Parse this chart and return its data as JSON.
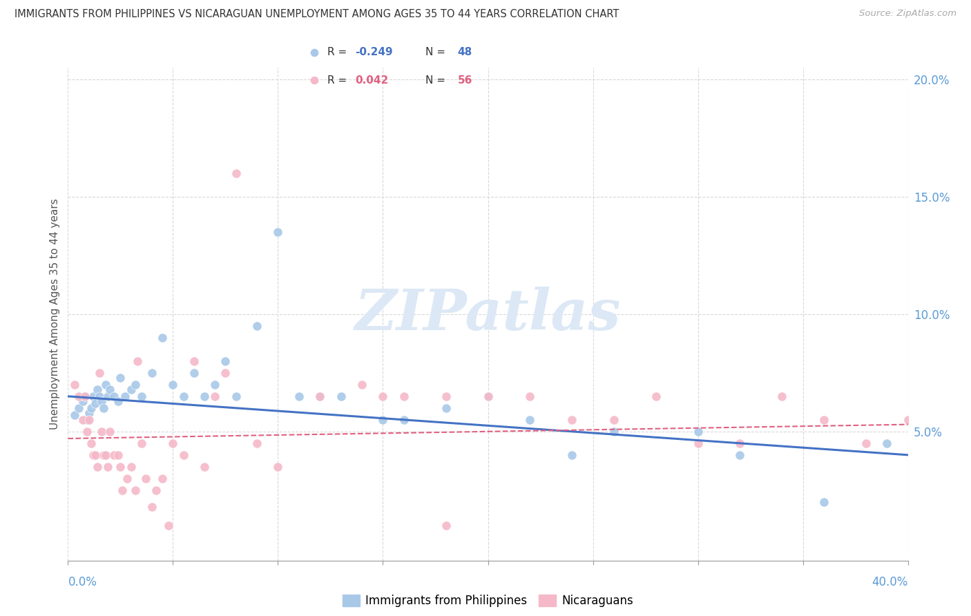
{
  "title": "IMMIGRANTS FROM PHILIPPINES VS NICARAGUAN UNEMPLOYMENT AMONG AGES 35 TO 44 YEARS CORRELATION CHART",
  "source": "Source: ZipAtlas.com",
  "ylabel": "Unemployment Among Ages 35 to 44 years",
  "right_ytick_vals": [
    0.05,
    0.1,
    0.15,
    0.2
  ],
  "blue_color": "#a8c8e8",
  "pink_color": "#f5b8c8",
  "blue_line_color": "#4472c4",
  "pink_line_color": "#e06080",
  "watermark_text": "ZIPatlas",
  "watermark_color": "#dce8f5",
  "background_color": "#ffffff",
  "grid_color": "#d8d8d8",
  "xlim": [
    0.0,
    0.4
  ],
  "ylim": [
    -0.005,
    0.205
  ],
  "blue_x": [
    0.003,
    0.005,
    0.007,
    0.008,
    0.009,
    0.01,
    0.011,
    0.012,
    0.013,
    0.014,
    0.015,
    0.016,
    0.017,
    0.018,
    0.019,
    0.02,
    0.022,
    0.024,
    0.025,
    0.027,
    0.03,
    0.032,
    0.035,
    0.04,
    0.045,
    0.05,
    0.055,
    0.06,
    0.065,
    0.07,
    0.075,
    0.08,
    0.09,
    0.1,
    0.11,
    0.12,
    0.13,
    0.15,
    0.16,
    0.18,
    0.2,
    0.22,
    0.24,
    0.26,
    0.3,
    0.32,
    0.36,
    0.39
  ],
  "blue_y": [
    0.057,
    0.06,
    0.063,
    0.065,
    0.055,
    0.058,
    0.06,
    0.065,
    0.062,
    0.068,
    0.065,
    0.063,
    0.06,
    0.07,
    0.065,
    0.068,
    0.065,
    0.063,
    0.073,
    0.065,
    0.068,
    0.07,
    0.065,
    0.075,
    0.09,
    0.07,
    0.065,
    0.075,
    0.065,
    0.07,
    0.08,
    0.065,
    0.095,
    0.135,
    0.065,
    0.065,
    0.065,
    0.055,
    0.055,
    0.06,
    0.065,
    0.055,
    0.04,
    0.05,
    0.05,
    0.04,
    0.02,
    0.045
  ],
  "pink_x": [
    0.003,
    0.005,
    0.007,
    0.008,
    0.009,
    0.01,
    0.011,
    0.012,
    0.013,
    0.014,
    0.015,
    0.016,
    0.017,
    0.018,
    0.019,
    0.02,
    0.022,
    0.024,
    0.025,
    0.026,
    0.028,
    0.03,
    0.032,
    0.033,
    0.035,
    0.037,
    0.04,
    0.042,
    0.045,
    0.048,
    0.05,
    0.055,
    0.06,
    0.065,
    0.07,
    0.075,
    0.08,
    0.09,
    0.1,
    0.12,
    0.14,
    0.15,
    0.16,
    0.18,
    0.2,
    0.22,
    0.24,
    0.26,
    0.28,
    0.3,
    0.32,
    0.34,
    0.36,
    0.38,
    0.4,
    0.18
  ],
  "pink_y": [
    0.07,
    0.065,
    0.055,
    0.065,
    0.05,
    0.055,
    0.045,
    0.04,
    0.04,
    0.035,
    0.075,
    0.05,
    0.04,
    0.04,
    0.035,
    0.05,
    0.04,
    0.04,
    0.035,
    0.025,
    0.03,
    0.035,
    0.025,
    0.08,
    0.045,
    0.03,
    0.018,
    0.025,
    0.03,
    0.01,
    0.045,
    0.04,
    0.08,
    0.035,
    0.065,
    0.075,
    0.16,
    0.045,
    0.035,
    0.065,
    0.07,
    0.065,
    0.065,
    0.065,
    0.065,
    0.065,
    0.055,
    0.055,
    0.065,
    0.045,
    0.045,
    0.065,
    0.055,
    0.045,
    0.055,
    0.01
  ],
  "blue_trend_x": [
    0.0,
    0.4
  ],
  "blue_trend_y": [
    0.065,
    0.04
  ],
  "pink_trend_x": [
    0.0,
    0.4
  ],
  "pink_trend_y": [
    0.047,
    0.053
  ],
  "legend_R1": "-0.249",
  "legend_N1": "48",
  "legend_R2": "0.042",
  "legend_N2": "56"
}
